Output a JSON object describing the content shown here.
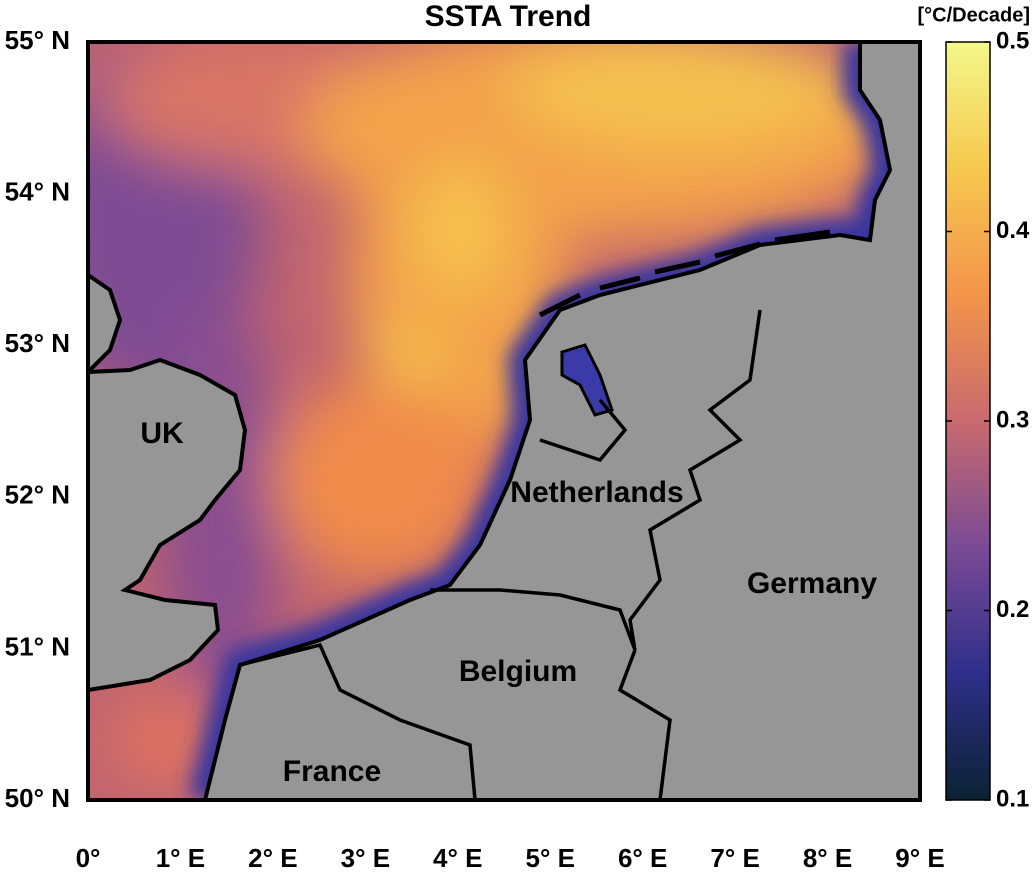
{
  "title": "SSTA Trend",
  "map": {
    "lonlim": [
      0,
      9
    ],
    "latlim": [
      50,
      55
    ],
    "lat_ticks": [
      {
        "value": 55,
        "label": "55° N"
      },
      {
        "value": 54,
        "label": "54° N"
      },
      {
        "value": 53,
        "label": "53° N"
      },
      {
        "value": 52,
        "label": "52° N"
      },
      {
        "value": 51,
        "label": "51° N"
      },
      {
        "value": 50,
        "label": "50° N"
      }
    ],
    "lon_ticks": [
      {
        "value": 0,
        "label": "0°"
      },
      {
        "value": 1,
        "label": "1° E"
      },
      {
        "value": 2,
        "label": "2° E"
      },
      {
        "value": 3,
        "label": "3° E"
      },
      {
        "value": 4,
        "label": "4° E"
      },
      {
        "value": 5,
        "label": "5° E"
      },
      {
        "value": 6,
        "label": "6° E"
      },
      {
        "value": 7,
        "label": "7° E"
      },
      {
        "value": 8,
        "label": "8° E"
      },
      {
        "value": 9,
        "label": "9° E"
      }
    ],
    "regions": [
      "UK",
      "Netherlands",
      "Germany",
      "Belgium",
      "France"
    ]
  },
  "colorbar": {
    "label": "[°C/Decade]",
    "lim": [
      0.1,
      0.5
    ],
    "ticks": [
      0.1,
      0.2,
      0.3,
      0.4,
      0.5
    ],
    "colors": [
      "#0b2233",
      "#2e2f8a",
      "#7a4a95",
      "#c86a6e",
      "#f3944a",
      "#f6c84f",
      "#f4f88a"
    ]
  }
}
